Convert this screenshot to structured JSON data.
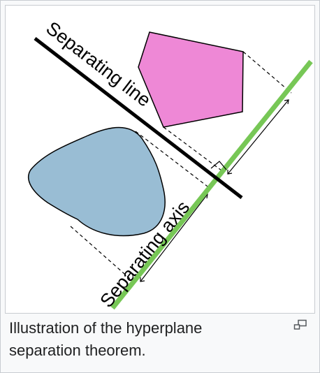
{
  "figure": {
    "labels": {
      "separating_line": "Separating line",
      "separating_axis": "Separating axis"
    },
    "colors": {
      "pentagon_fill": "#ee88d6",
      "blob_fill": "#99bdd4",
      "axis_color": "#77c756",
      "line_color": "#000000",
      "frame_border": "#c8ccd1",
      "caption_bg": "#f8f9fa"
    },
    "caption": "Illustration of the hyperplane separation theorem.",
    "icon": "magnify-clip-icon"
  }
}
